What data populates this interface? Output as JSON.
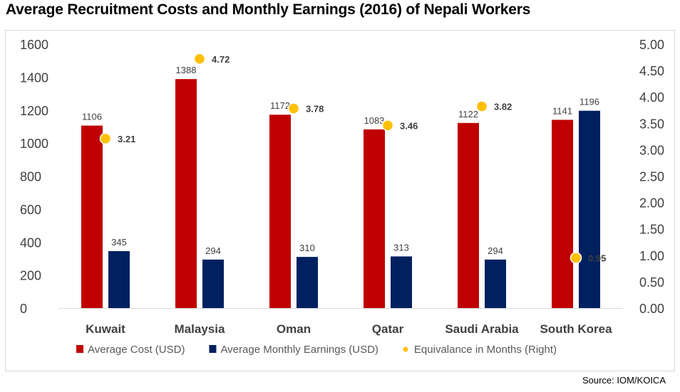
{
  "chart_data": {
    "type": "bar",
    "title": "Average Recruitment Costs and Monthly Earnings (2016) of Nepali Workers",
    "categories": [
      "Kuwait",
      "Malaysia",
      "Oman",
      "Qatar",
      "Saudi Arabia",
      "South Korea"
    ],
    "series": [
      {
        "name": "Average Cost (USD)",
        "axis": "left",
        "type": "bar",
        "color": "#c00000",
        "values": [
          1106,
          1388,
          1172,
          1083,
          1122,
          1141
        ]
      },
      {
        "name": "Average Monthly Earnings (USD)",
        "axis": "left",
        "type": "bar",
        "color": "#002060",
        "values": [
          345,
          294,
          310,
          313,
          294,
          1196
        ]
      },
      {
        "name": "Equivalance in Months (Right)",
        "axis": "right",
        "type": "scatter",
        "color": "#ffc000",
        "values": [
          3.21,
          4.72,
          3.78,
          3.46,
          3.82,
          0.95
        ],
        "labels": [
          "3.21",
          "4.72",
          "3.78",
          "3.46",
          "3.82",
          "0.95"
        ]
      }
    ],
    "ylim": [
      0,
      1600
    ],
    "yticks": [
      "0",
      "200",
      "400",
      "600",
      "800",
      "1000",
      "1200",
      "1400",
      "1600"
    ],
    "y2lim": [
      0,
      5
    ],
    "y2ticks": [
      "0.00",
      "0.50",
      "1.00",
      "1.50",
      "2.00",
      "2.50",
      "3.00",
      "3.50",
      "4.00",
      "4.50",
      "5.00"
    ],
    "legend": "bottom",
    "source": "Source: IOM/KOICA"
  }
}
